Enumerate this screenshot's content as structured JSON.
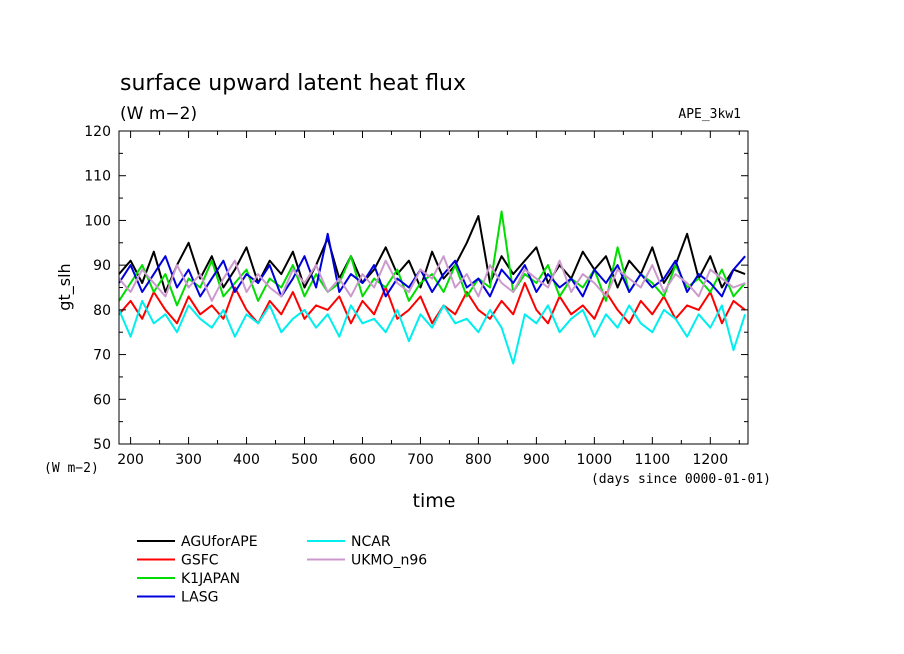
{
  "chart_data": {
    "type": "line",
    "title": "surface upward latent heat flux",
    "units": "(W m−2)",
    "y_unit_label": "(W m−2)",
    "experiment": "APE_3kw1",
    "xlabel": "time",
    "x_units": "(days since 0000-01-01)",
    "ylabel": "gt_slh",
    "xlim": [
      180,
      1265
    ],
    "ylim": [
      50,
      120
    ],
    "x_ticks": [
      200,
      300,
      400,
      500,
      600,
      700,
      800,
      900,
      1000,
      1100,
      1200
    ],
    "y_ticks": [
      50,
      60,
      70,
      80,
      90,
      100,
      110,
      120
    ],
    "x": [
      180,
      200,
      220,
      240,
      260,
      280,
      300,
      320,
      340,
      360,
      380,
      400,
      420,
      440,
      460,
      480,
      500,
      520,
      540,
      560,
      580,
      600,
      620,
      640,
      660,
      680,
      700,
      720,
      740,
      760,
      780,
      800,
      820,
      840,
      860,
      880,
      900,
      920,
      940,
      960,
      980,
      1000,
      1020,
      1040,
      1060,
      1080,
      1100,
      1120,
      1140,
      1160,
      1180,
      1200,
      1220,
      1240,
      1260
    ],
    "series": [
      {
        "name": "AGUforAPE",
        "color": "#000000",
        "values": [
          88,
          91,
          86,
          93,
          84,
          90,
          95,
          87,
          92,
          85,
          89,
          94,
          86,
          91,
          88,
          93,
          85,
          90,
          96,
          87,
          92,
          86,
          89,
          94,
          88,
          91,
          85,
          93,
          87,
          90,
          95,
          101,
          86,
          92,
          88,
          91,
          94,
          86,
          90,
          87,
          93,
          89,
          92,
          85,
          91,
          88,
          94,
          86,
          90,
          97,
          87,
          92,
          85,
          89,
          88
        ]
      },
      {
        "name": "GSFC",
        "color": "#ff0000",
        "values": [
          79,
          82,
          78,
          84,
          80,
          77,
          83,
          79,
          81,
          78,
          85,
          80,
          77,
          82,
          79,
          84,
          78,
          81,
          80,
          83,
          77,
          82,
          79,
          85,
          78,
          80,
          83,
          77,
          81,
          79,
          84,
          80,
          78,
          82,
          79,
          86,
          80,
          77,
          83,
          79,
          81,
          78,
          84,
          80,
          77,
          82,
          79,
          83,
          78,
          81,
          80,
          84,
          77,
          82,
          80
        ]
      },
      {
        "name": "K1JAPAN",
        "color": "#00dd00",
        "values": [
          82,
          86,
          90,
          84,
          88,
          81,
          87,
          85,
          91,
          83,
          86,
          89,
          82,
          87,
          85,
          90,
          83,
          88,
          84,
          86,
          92,
          83,
          87,
          85,
          89,
          82,
          86,
          88,
          84,
          90,
          83,
          87,
          85,
          102,
          84,
          88,
          86,
          90,
          83,
          87,
          85,
          89,
          82,
          94,
          84,
          88,
          86,
          83,
          90,
          85,
          87,
          84,
          89,
          83,
          86
        ]
      },
      {
        "name": "LASG",
        "color": "#0000dd",
        "values": [
          86,
          90,
          84,
          88,
          92,
          85,
          89,
          83,
          87,
          91,
          84,
          88,
          86,
          90,
          83,
          87,
          92,
          85,
          97,
          84,
          88,
          86,
          90,
          83,
          87,
          85,
          89,
          84,
          88,
          91,
          85,
          87,
          83,
          89,
          86,
          90,
          84,
          88,
          85,
          87,
          83,
          89,
          86,
          90,
          84,
          88,
          85,
          87,
          91,
          84,
          88,
          86,
          83,
          89,
          92
        ]
      },
      {
        "name": "NCAR",
        "color": "#00eeee",
        "values": [
          80,
          74,
          82,
          77,
          79,
          75,
          81,
          78,
          76,
          80,
          74,
          79,
          77,
          81,
          75,
          78,
          80,
          76,
          79,
          74,
          81,
          77,
          78,
          75,
          80,
          73,
          79,
          76,
          81,
          77,
          78,
          75,
          80,
          76,
          68,
          79,
          77,
          81,
          75,
          78,
          80,
          74,
          79,
          76,
          81,
          77,
          75,
          80,
          78,
          74,
          79,
          76,
          81,
          71,
          79
        ]
      },
      {
        "name": "UKMO_n96",
        "color": "#cc99cc",
        "values": [
          87,
          84,
          89,
          86,
          83,
          90,
          85,
          88,
          82,
          87,
          91,
          84,
          88,
          85,
          83,
          89,
          86,
          90,
          84,
          87,
          83,
          88,
          85,
          91,
          86,
          84,
          89,
          87,
          92,
          85,
          88,
          83,
          90,
          86,
          84,
          89,
          87,
          85,
          91,
          84,
          88,
          86,
          83,
          89,
          87,
          85,
          90,
          84,
          88,
          86,
          83,
          89,
          87,
          85,
          86
        ]
      }
    ],
    "legend_columns": [
      [
        "AGUforAPE",
        "GSFC",
        "K1JAPAN",
        "LASG"
      ],
      [
        "NCAR",
        "UKMO_n96"
      ]
    ],
    "legend_placement": "bottom-left",
    "grid": false
  }
}
